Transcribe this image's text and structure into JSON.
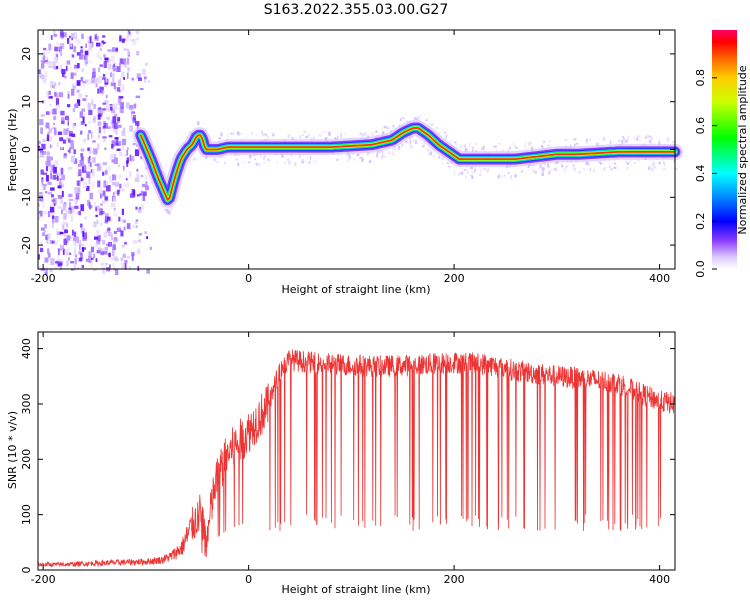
{
  "title": "S163.2022.355.03.00.G27",
  "chart_data": [
    {
      "type": "heatmap",
      "xlabel": "Height of straight line (km)",
      "ylabel": "Frequency (Hz)",
      "xlim": [
        -205,
        415
      ],
      "ylim": [
        -25,
        25
      ],
      "xticks": [
        -200,
        0,
        200,
        400
      ],
      "yticks": [
        -20,
        -10,
        0,
        10,
        20
      ],
      "colorbar": {
        "label": "Normalized spectral amplitude",
        "range": [
          0,
          1
        ],
        "ticks": [
          0.0,
          0.2,
          0.4,
          0.6,
          0.8
        ]
      },
      "ridge": {
        "x": [
          -105,
          -95,
          -88,
          -82,
          -78,
          -72,
          -66,
          -60,
          -55,
          -50,
          -46,
          -42,
          -38,
          -30,
          -20,
          0,
          40,
          80,
          120,
          140,
          150,
          160,
          165,
          175,
          185,
          195,
          205,
          220,
          260,
          280,
          300,
          320,
          360,
          415
        ],
        "y": [
          3,
          -2,
          -6,
          -9,
          -11,
          -6,
          -2,
          0,
          1,
          3,
          3,
          0,
          0,
          0,
          0.5,
          0.5,
          0.5,
          0.5,
          1,
          2,
          3.5,
          4.5,
          4.5,
          3,
          1,
          -0.5,
          -2,
          -2,
          -2,
          -1.5,
          -1,
          -1,
          -0.5,
          -0.5
        ]
      }
    },
    {
      "type": "line",
      "xlabel": "Height of straight line (km)",
      "ylabel": "SNR (10 * v/v)",
      "xlim": [
        -205,
        415
      ],
      "ylim": [
        0,
        430
      ],
      "xticks": [
        -200,
        0,
        200,
        400
      ],
      "yticks": [
        0,
        100,
        200,
        300,
        400
      ],
      "color": "#ee3333",
      "series": [
        {
          "x": [
            -205,
            -180,
            -150,
            -120,
            -100,
            -85,
            -75,
            -65,
            -55,
            -48,
            -40,
            -35,
            -30,
            -20,
            -10,
            0,
            10,
            20,
            30,
            40,
            60,
            80,
            100,
            130,
            160,
            200,
            230,
            260,
            300,
            330,
            360,
            380,
            400,
            415
          ],
          "y": [
            10,
            10,
            12,
            14,
            15,
            18,
            25,
            40,
            80,
            100,
            60,
            130,
            170,
            210,
            230,
            250,
            275,
            300,
            360,
            380,
            375,
            372,
            370,
            368,
            370,
            375,
            372,
            360,
            350,
            345,
            338,
            320,
            305,
            300
          ]
        }
      ]
    }
  ]
}
